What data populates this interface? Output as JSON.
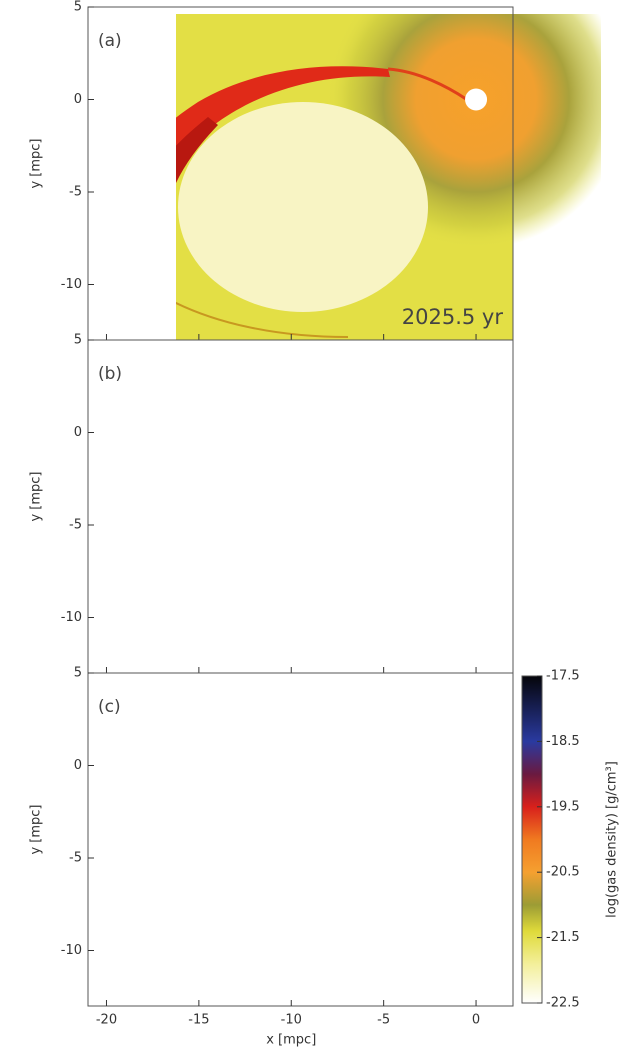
{
  "chart_data": {
    "type": "density-map",
    "panels": [
      {
        "label": "(a)",
        "annotation": "2025.5 yr"
      },
      {
        "label": "(b)"
      },
      {
        "label": "(c)"
      }
    ],
    "xlabel": "x [mpc]",
    "ylabel": "y [mpc]",
    "xlim": [
      -21,
      2
    ],
    "xticks": [
      -20,
      -15,
      -10,
      -5,
      0
    ],
    "ylim": [
      -13,
      5
    ],
    "yticks": [
      -10,
      -5,
      0,
      5
    ],
    "colorbar": {
      "label": "log(gas density) [g/cm³]",
      "lim": [
        -22.5,
        -17.5
      ],
      "ticks": [
        -22.5,
        -21.5,
        -20.5,
        -19.5,
        -18.5,
        -17.5
      ]
    }
  }
}
